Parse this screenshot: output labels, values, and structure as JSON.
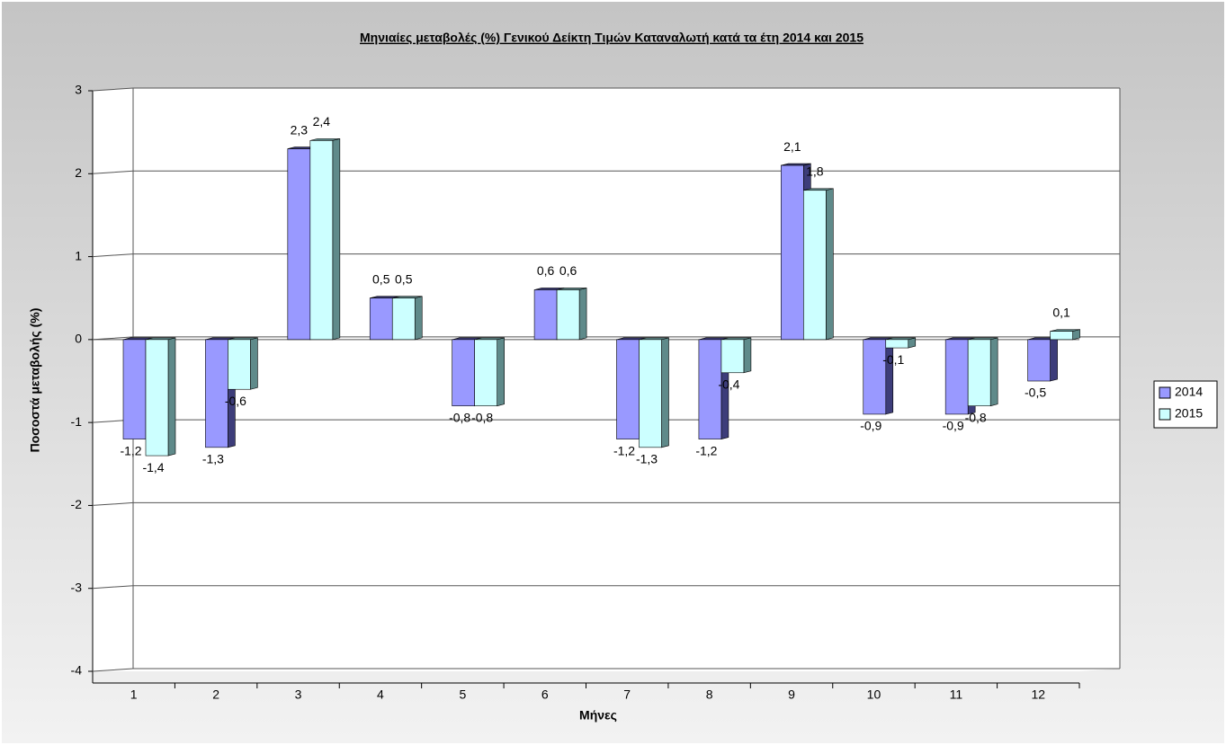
{
  "chart_data": {
    "type": "bar",
    "title": "Μηνιαίες μεταβολές (%) Γενικού Δείκτη Τιμών Καταναλωτή κατά τα έτη 2014 και 2015",
    "xlabel": "Μήνες",
    "ylabel": "Ποσοστά μεταβολής (%)",
    "categories": [
      "1",
      "2",
      "3",
      "4",
      "5",
      "6",
      "7",
      "8",
      "9",
      "10",
      "11",
      "12"
    ],
    "series": [
      {
        "name": "2014",
        "color": "#9999ff",
        "side_color": "#3d3d7a",
        "values": [
          -1.2,
          -1.3,
          2.3,
          0.5,
          -0.8,
          0.6,
          -1.2,
          -1.2,
          2.1,
          -0.9,
          -0.9,
          -0.5
        ],
        "value_labels": [
          "-1,2",
          "-1,3",
          "2,3",
          "0,5",
          "-0,8",
          "0,6",
          "-1,2",
          "-1,2",
          "2,1",
          "-0,9",
          "-0,9",
          "-0,5"
        ]
      },
      {
        "name": "2015",
        "color": "#ccffff",
        "side_color": "#5f8a8a",
        "values": [
          -1.4,
          -0.6,
          2.4,
          0.5,
          -0.8,
          0.6,
          -1.3,
          -0.4,
          1.8,
          -0.1,
          -0.8,
          0.1
        ],
        "value_labels": [
          "-1,4",
          "-0,6",
          "2,4",
          "0,5",
          "-0,8",
          "0,6",
          "-1,3",
          "-0,4",
          "1,8",
          "-0,1",
          "-0,8",
          "0,1"
        ]
      }
    ],
    "ylim": [
      -4,
      3
    ],
    "yticks": [
      -4,
      -3,
      -2,
      -1,
      0,
      1,
      2,
      3
    ],
    "grid": true,
    "legend": "right"
  }
}
